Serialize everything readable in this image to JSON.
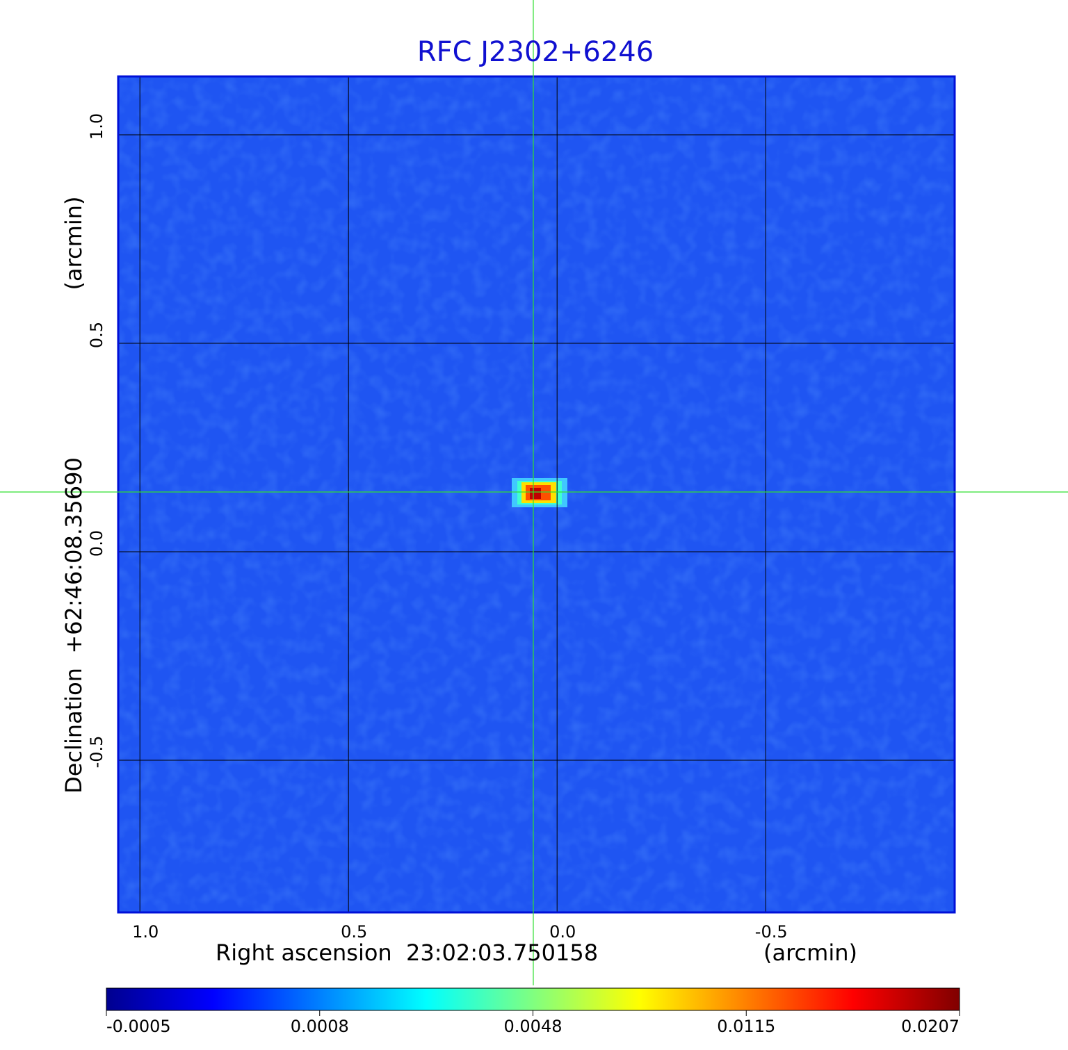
{
  "chart_data": {
    "type": "image",
    "title": "RFC J2302+6246",
    "x_label": "Right ascension  23:02:03.750158",
    "x_unit": "(arcmin)",
    "y_label": "Declination  +62:46:08.35690",
    "y_unit": "(arcmin)",
    "xlim": [
      1.052,
      -0.953
    ],
    "ylim": [
      -0.865,
      1.14
    ],
    "xticks": [
      {
        "value": 1,
        "label": "1.0"
      },
      0.5,
      {
        "value": 0,
        "label": "0.0"
      },
      -0.5
    ],
    "yticks": [
      {
        "value": 1,
        "label": "1.0"
      },
      0.5,
      {
        "value": 0,
        "label": "0.0"
      },
      -0.5
    ],
    "grid": true,
    "colorbar": {
      "ticks": [
        -0.0005,
        0.0008,
        0.0048,
        0.0115,
        0.0207
      ],
      "colormap": [
        "#00008f",
        "#0000ff",
        "#0080ff",
        "#00ffff",
        "#80ff80",
        "#ffff00",
        "#ff8000",
        "#ff0000",
        "#800000"
      ]
    }
  }
}
